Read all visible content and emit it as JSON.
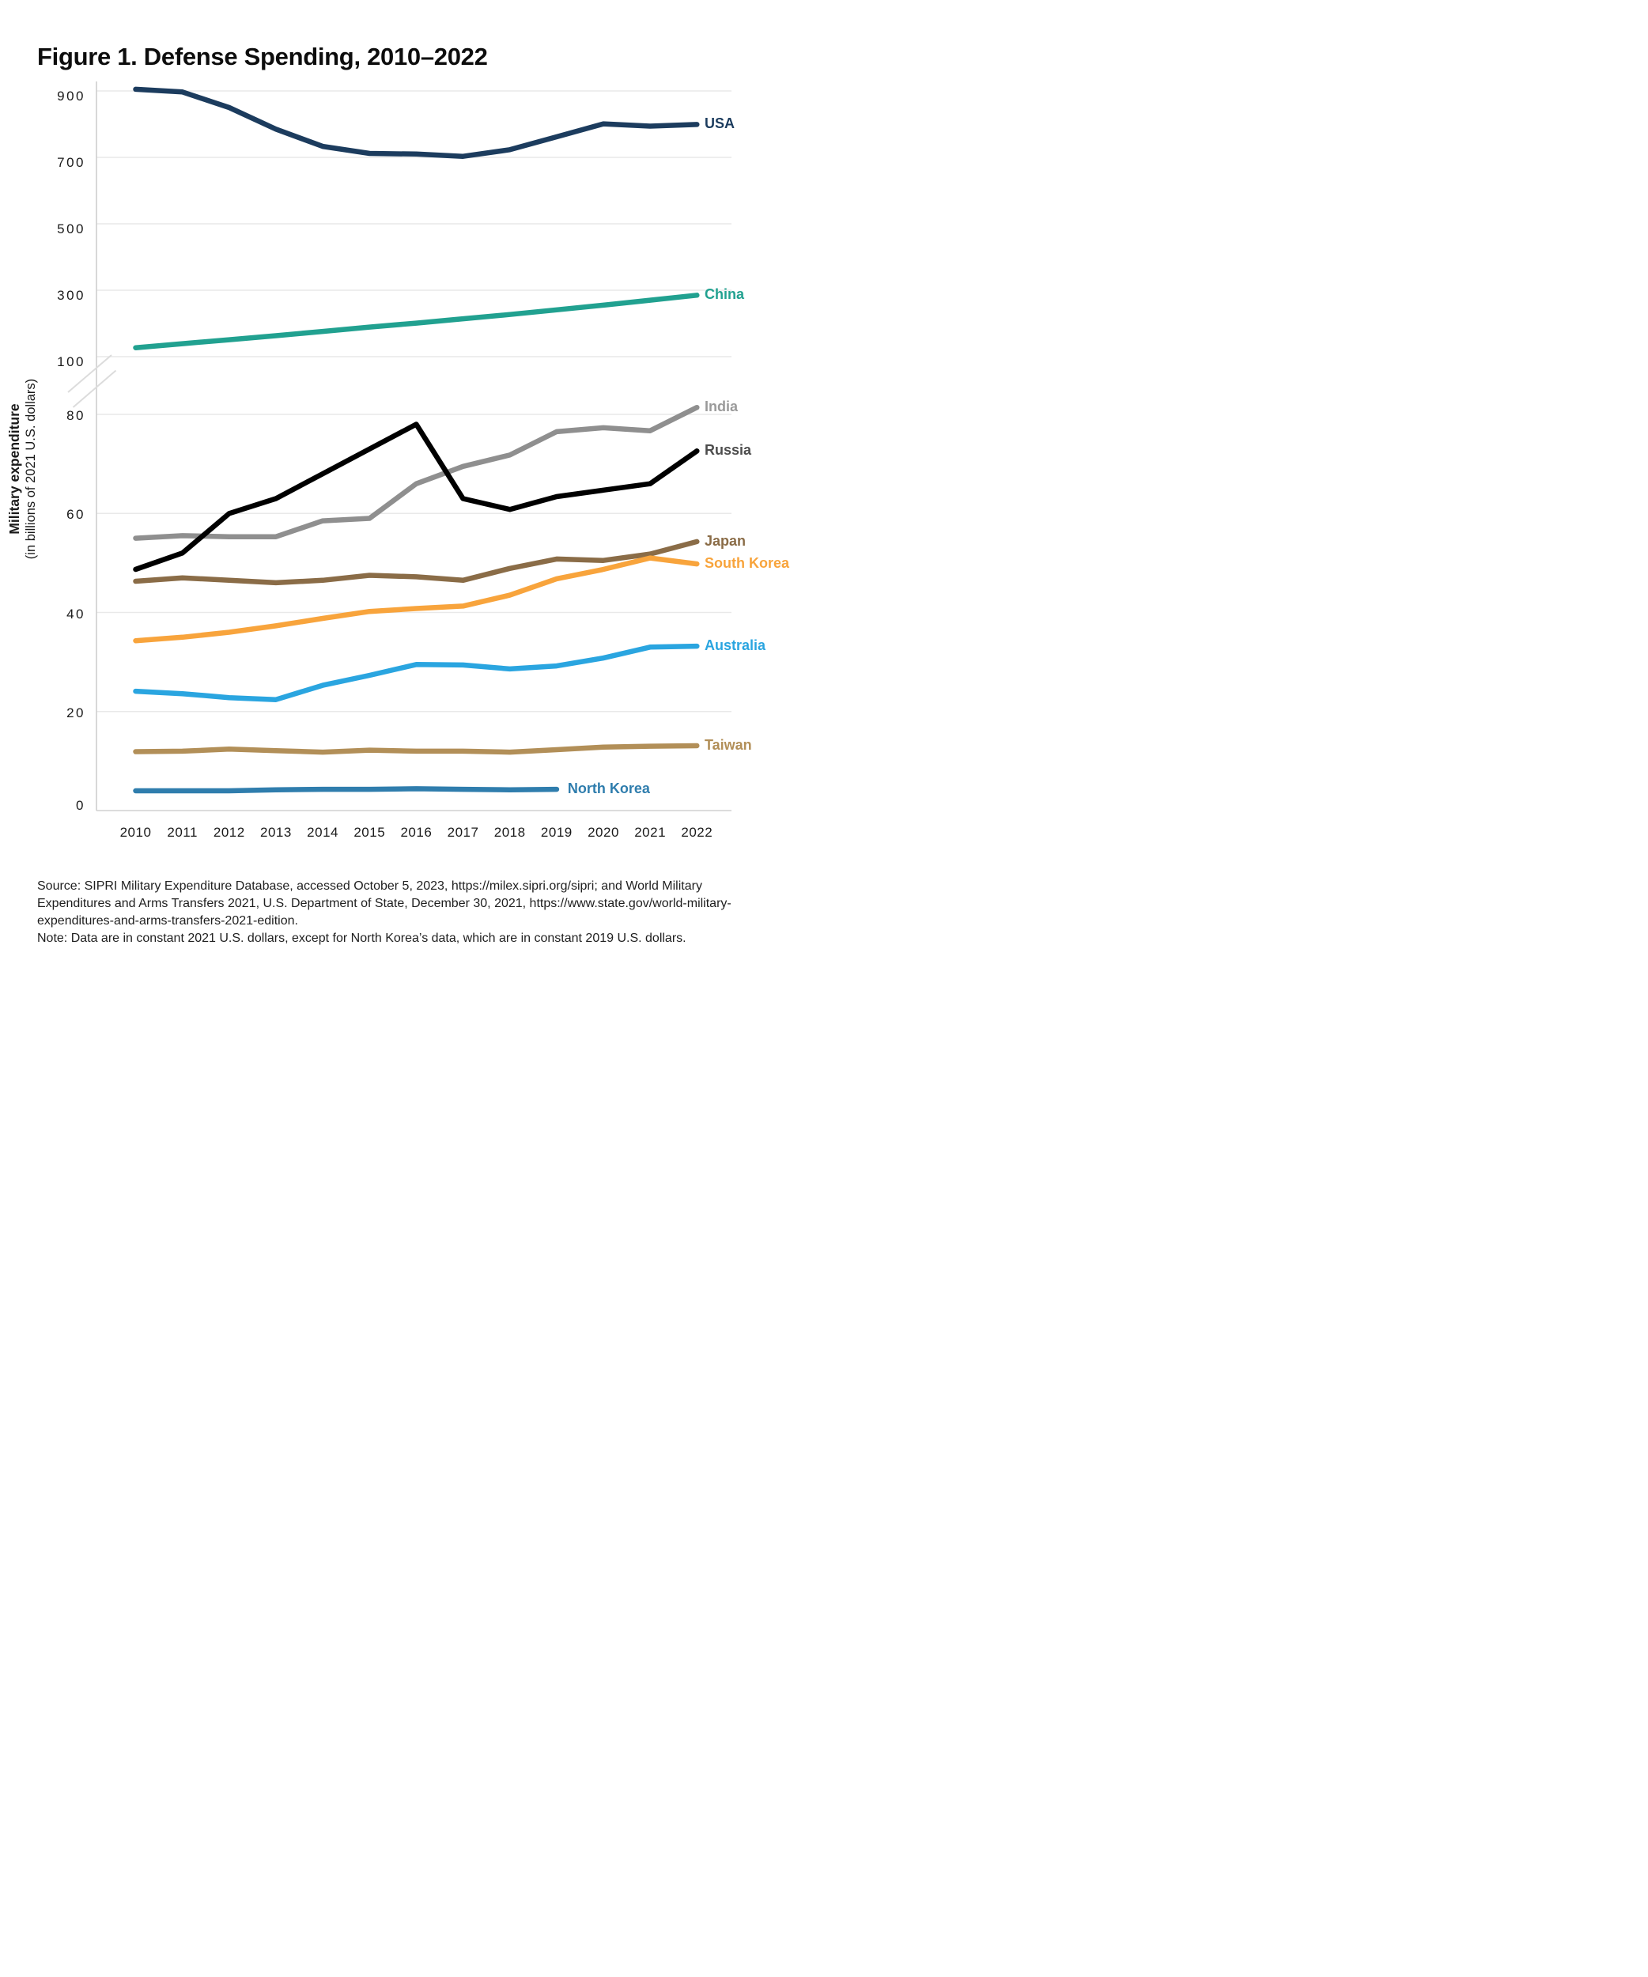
{
  "title": "Figure 1. Defense Spending, 2010–2022",
  "y_axis": {
    "title_bold": "Military expenditure",
    "title_sub": "(in billions of 2021 U.S. dollars)",
    "top_ticks": [
      900,
      700,
      500,
      300,
      100
    ],
    "bottom_ticks": [
      80,
      60,
      40,
      20,
      0
    ]
  },
  "x_axis": {
    "years": [
      2010,
      2011,
      2012,
      2013,
      2014,
      2015,
      2016,
      2017,
      2018,
      2019,
      2020,
      2021,
      2022
    ]
  },
  "source_lines": [
    "Source: SIPRI Military Expenditure Database, accessed October 5, 2023, https://milex.sipri.org/sipri; and World Military",
    "Expenditures and Arms Transfers 2021, U.S. Department of State, December 30, 2021, https://www.state.gov/world-military-",
    "expenditures-and-arms-transfers-2021-edition.",
    "Note: Data are in constant 2021 U.S. dollars, except for North Korea’s data, which are in constant 2019 U.S. dollars."
  ],
  "chart_data": {
    "type": "line",
    "title": "Figure 1. Defense Spending, 2010–2022",
    "xlabel": "",
    "ylabel": "Military expenditure (in billions of 2021 U.S. dollars)",
    "x": [
      2010,
      2011,
      2012,
      2013,
      2014,
      2015,
      2016,
      2017,
      2018,
      2019,
      2020,
      2021,
      2022
    ],
    "broken_y_axis": {
      "top_panel_range": [
        100,
        900
      ],
      "top_panel_ticks": [
        100,
        300,
        500,
        700,
        900
      ],
      "bottom_panel_range": [
        0,
        80
      ],
      "bottom_panel_ticks": [
        0,
        20,
        40,
        60,
        80
      ]
    },
    "grid": "horizontal gridlines at labeled ticks only",
    "legend_position": "labels at right end of each line",
    "series": [
      {
        "name": "USA",
        "label": "USA",
        "panel": "top",
        "color": "#1c3c5e",
        "label_color": "#1c3c5e",
        "values": [
          905,
          897,
          850,
          785,
          733,
          712,
          710,
          703,
          723,
          762,
          801,
          794,
          799
        ]
      },
      {
        "name": "China",
        "label": "China",
        "panel": "top",
        "color": "#21a190",
        "label_color": "#21a190",
        "values": [
          127,
          139,
          151,
          163,
          176,
          189,
          201,
          214,
          227,
          241,
          255,
          270,
          285
        ]
      },
      {
        "name": "India",
        "label": "India",
        "panel": "bottom",
        "color": "#8f8f8f",
        "label_color": "#9a9a9a",
        "values": [
          55,
          55.5,
          55.3,
          55.3,
          58.5,
          59,
          66,
          69.5,
          71.8,
          76.5,
          77.3,
          76.7,
          81.4
        ]
      },
      {
        "name": "Russia",
        "label": "Russia",
        "panel": "bottom",
        "color": "#000000",
        "label_color": "#4d4d4d",
        "values": [
          48.7,
          52,
          60,
          63,
          68,
          73,
          78,
          63,
          60.8,
          63.4,
          64.7,
          66,
          72.6
        ]
      },
      {
        "name": "Japan",
        "label": "Japan",
        "panel": "bottom",
        "color": "#8a6c47",
        "label_color": "#8a6c47",
        "values": [
          46.3,
          47,
          46.5,
          46,
          46.5,
          47.5,
          47.2,
          46.5,
          48.9,
          50.8,
          50.5,
          51.8,
          54.3
        ]
      },
      {
        "name": "South Korea",
        "label": "South Korea",
        "panel": "bottom",
        "color": "#f8a43c",
        "label_color": "#f8a43c",
        "values": [
          34.3,
          35,
          36,
          37.3,
          38.8,
          40.2,
          40.8,
          41.3,
          43.5,
          46.8,
          48.7,
          51,
          49.8
        ]
      },
      {
        "name": "Australia",
        "label": "Australia",
        "panel": "bottom",
        "color": "#2aa5e0",
        "label_color": "#2aa5e0",
        "values": [
          24.1,
          23.6,
          22.8,
          22.4,
          25.3,
          27.3,
          29.5,
          29.4,
          28.6,
          29.2,
          30.8,
          33,
          33.2
        ]
      },
      {
        "name": "Taiwan",
        "label": "Taiwan",
        "panel": "bottom",
        "color": "#b28f58",
        "label_color": "#b28f58",
        "values": [
          11.9,
          12,
          12.4,
          12.1,
          11.8,
          12.2,
          12,
          12,
          11.8,
          12.3,
          12.8,
          13,
          13.1
        ]
      },
      {
        "name": "North Korea",
        "label": "North Korea",
        "panel": "bottom",
        "color": "#2f7dad",
        "label_color": "#2f7dad",
        "values": [
          4,
          4,
          4,
          4.2,
          4.3,
          4.3,
          4.4,
          4.3,
          4.2,
          4.3
        ],
        "ends_at_year": 2019,
        "label_follows_line": true
      }
    ]
  }
}
